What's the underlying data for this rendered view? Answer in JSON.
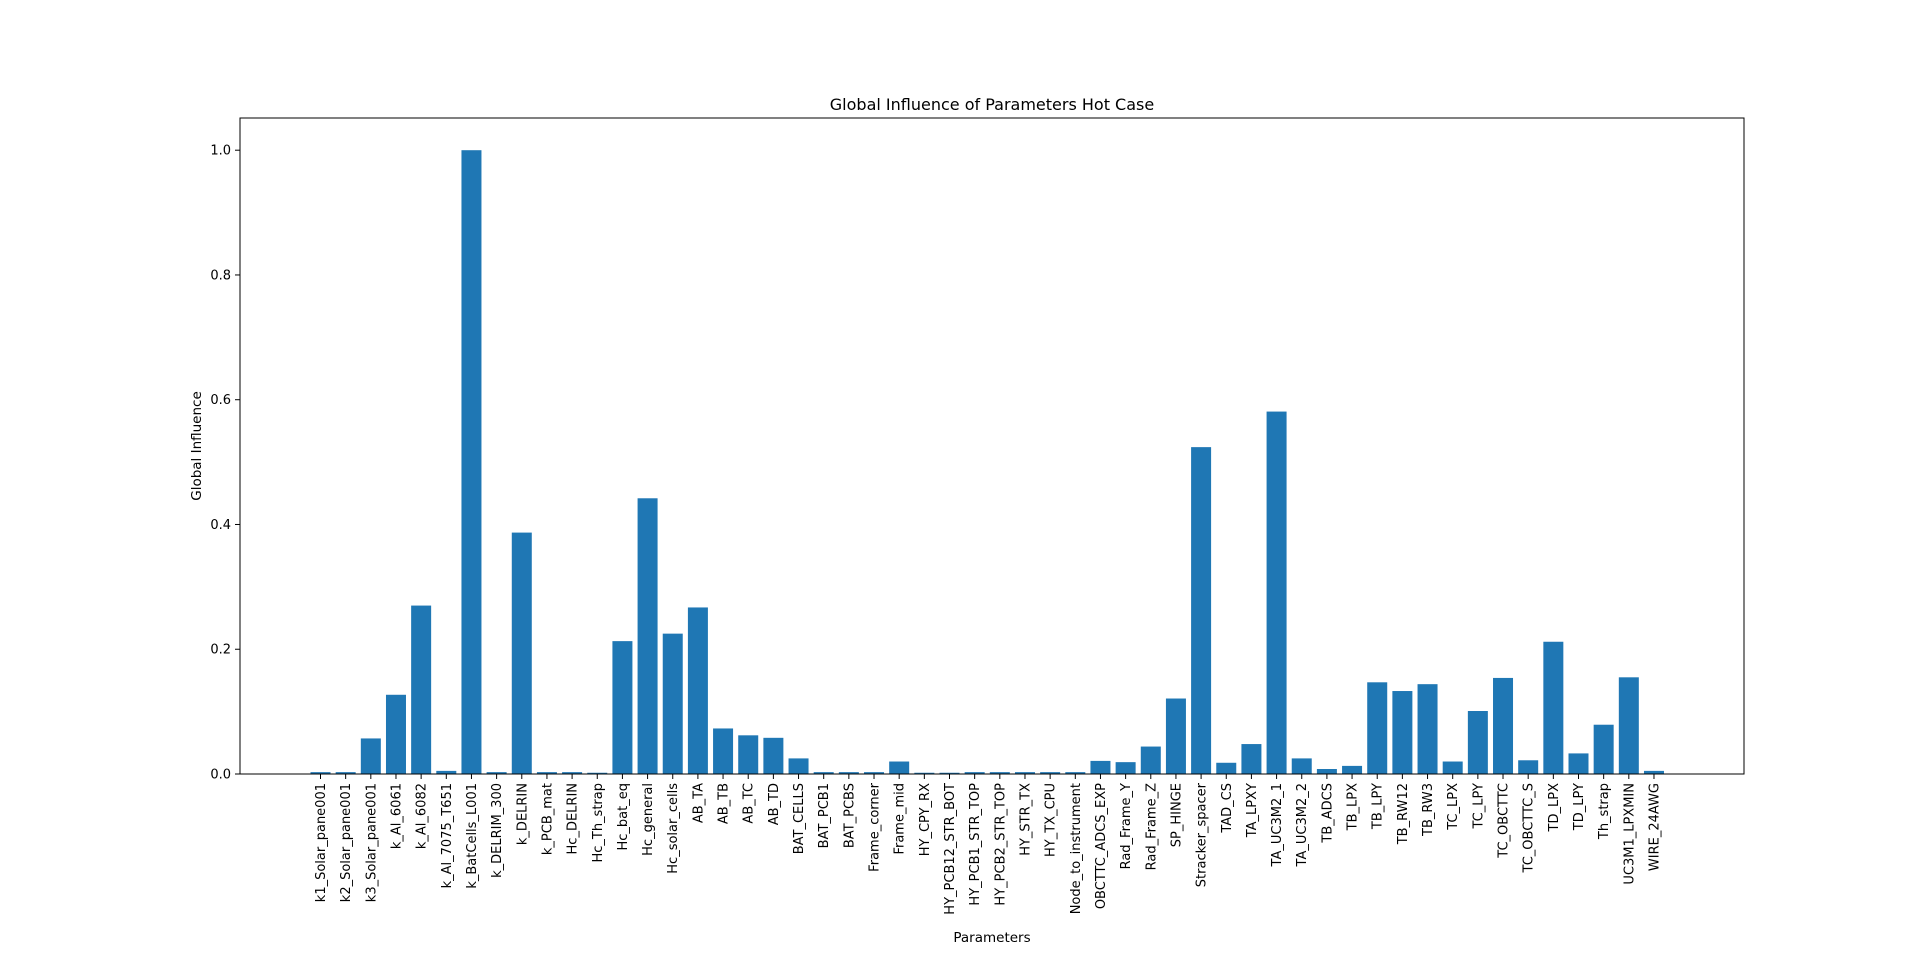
{
  "chart_data": {
    "type": "bar",
    "title": "Global Influence of Parameters Hot Case",
    "xlabel": "Parameters",
    "ylabel": "Global Influence",
    "ylim": [
      0,
      1.05
    ],
    "yticks": [
      "0.0",
      "0.2",
      "0.4",
      "0.6",
      "0.8",
      "1.0"
    ],
    "grid": false,
    "bar_color": "#1f77b4",
    "categories": [
      "k1_Solar_pane001",
      "k2_Solar_pane001",
      "k3_Solar_pane001",
      "k_Al_6061",
      "k_Al_6082",
      "k_Al_7075_T651",
      "k_BatCells_L001",
      "k_DELRIM_300",
      "k_DELRIN",
      "k_PCB_mat",
      "Hc_DELRIN",
      "Hc_Th_strap",
      "Hc_bat_eq",
      "Hc_general",
      "Hc_solar_cells",
      "AB_TA",
      "AB_TB",
      "AB_TC",
      "AB_TD",
      "BAT_CELLS",
      "BAT_PCB1",
      "BAT_PCBS",
      "Frame_corner",
      "Frame_mid",
      "HY_CPY_RX",
      "HY_PCB12_STR_BOT",
      "HY_PCB1_STR_TOP",
      "HY_PCB2_STR_TOP",
      "HY_STR_TX",
      "HY_TX_CPU",
      "Node_to_instrument",
      "OBCTTC_ADCS_EXP",
      "Rad_Frame_Y",
      "Rad_Frame_Z",
      "SP_HINGE",
      "Stracker_spacer",
      "TAD_CS",
      "TA_LPXY",
      "TA_UC3M2_1",
      "TA_UC3M2_2",
      "TB_ADCS",
      "TB_LPX",
      "TB_LPY",
      "TB_RW12",
      "TB_RW3",
      "TC_LPX",
      "TC_LPY",
      "TC_OBCTTC",
      "TC_OBCTTC_S",
      "TD_LPX",
      "TD_LPY",
      "Th_strap",
      "UC3M1_LPXMIN",
      "WIRE_24AWG"
    ],
    "values": [
      0.003,
      0.003,
      0.057,
      0.127,
      0.27,
      0.005,
      1.0,
      0.003,
      0.387,
      0.003,
      0.003,
      0.002,
      0.213,
      0.442,
      0.225,
      0.267,
      0.073,
      0.062,
      0.058,
      0.025,
      0.003,
      0.003,
      0.003,
      0.02,
      0.002,
      0.002,
      0.003,
      0.003,
      0.003,
      0.003,
      0.003,
      0.021,
      0.019,
      0.044,
      0.121,
      0.524,
      0.018,
      0.048,
      0.581,
      0.025,
      0.008,
      0.013,
      0.147,
      0.133,
      0.144,
      0.02,
      0.101,
      0.154,
      0.022,
      0.212,
      0.033,
      0.079,
      0.155,
      0.005
    ]
  }
}
